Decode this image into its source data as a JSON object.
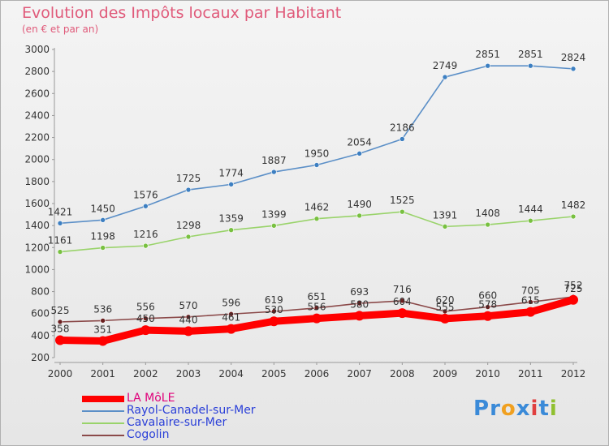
{
  "header": {
    "title": "Evolution des Impôts locaux par Habitant",
    "subtitle": "(en € et par an)"
  },
  "chart_data": {
    "type": "line",
    "x": [
      2000,
      2001,
      2002,
      2003,
      2004,
      2005,
      2006,
      2007,
      2008,
      2009,
      2010,
      2011,
      2012
    ],
    "y_ticks": [
      200,
      400,
      600,
      800,
      1000,
      1200,
      1400,
      1600,
      1800,
      2000,
      2200,
      2400,
      2600,
      2800,
      3000
    ],
    "ylim": [
      200,
      3000
    ],
    "grid": false,
    "legend_position": "bottom-left",
    "series": [
      {
        "name": "Rayol-Canadel-sur-Mer",
        "color": "#5b8fc7",
        "marker_color": "#3d7fc1",
        "values": [
          1421,
          1450,
          1576,
          1725,
          1774,
          1887,
          1950,
          2054,
          2186,
          2749,
          2851,
          2851,
          2824
        ],
        "labels": [
          "1421",
          "1450",
          "1576",
          "1725",
          "1774",
          "1887",
          "1950",
          "2054",
          "2186",
          "2749",
          "2851",
          "2851",
          "2824"
        ]
      },
      {
        "name": "Cavalaire-sur-Mer",
        "color": "#99d36a",
        "marker_color": "#78c040",
        "values": [
          1161,
          1198,
          1216,
          1298,
          1359,
          1399,
          1462,
          1490,
          1525,
          1391,
          1408,
          1444,
          1482
        ],
        "labels": [
          "1161",
          "1198",
          "1216",
          "1298",
          "1359",
          "1399",
          "1462",
          "1490",
          "1525",
          "1391",
          "1408",
          "1444",
          "1482"
        ]
      },
      {
        "name": "Cogolin",
        "color": "#8b4a4a",
        "marker_color": "#6a1f1f",
        "values": [
          525,
          536,
          556,
          570,
          596,
          619,
          651,
          693,
          716,
          620,
          660,
          705,
          752
        ],
        "labels": [
          "525",
          "536",
          "556",
          "570",
          "596",
          "619",
          "651",
          "693",
          "716",
          "620",
          "660",
          "705",
          "752"
        ]
      },
      {
        "name": "LA MôLE",
        "color": "#ff0000",
        "values": [
          358,
          351,
          450,
          440,
          461,
          530,
          556,
          580,
          604,
          555,
          578,
          615,
          725
        ],
        "labels": [
          "358",
          "351",
          "450",
          "440",
          "461",
          "530",
          "556",
          "580",
          "604",
          "555",
          "578",
          "615",
          "725"
        ]
      }
    ]
  },
  "legend": {
    "items": [
      {
        "label": "LA MôLE",
        "color": "#ff0000",
        "text_color": "#e0007a"
      },
      {
        "label": "Rayol-Canadel-sur-Mer",
        "color": "#5b8fc7",
        "text_color": "#2a3fd8"
      },
      {
        "label": "Cavalaire-sur-Mer",
        "color": "#99d36a",
        "text_color": "#2a3fd8"
      },
      {
        "label": "Cogolin",
        "color": "#8b4a4a",
        "text_color": "#2a3fd8"
      }
    ]
  },
  "brand": {
    "letters": [
      "P",
      "r",
      "o",
      "x",
      "i",
      "t",
      "i"
    ],
    "colors": [
      "#3a8ad8",
      "#3a8ad8",
      "#f0a020",
      "#3a8ad8",
      "#e04040",
      "#3a8ad8",
      "#90c030"
    ]
  }
}
